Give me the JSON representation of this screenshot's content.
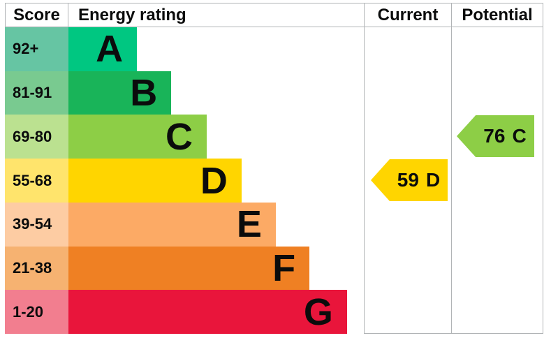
{
  "header": {
    "score": "Score",
    "energy_rating": "Energy rating",
    "current": "Current",
    "potential": "Potential"
  },
  "bands": [
    {
      "letter": "A",
      "range": "92+",
      "bar_color": "#00c781",
      "score_color": "#66c5a3",
      "width": "23.2%"
    },
    {
      "letter": "B",
      "range": "81-91",
      "bar_color": "#19b459",
      "score_color": "#79ca90",
      "width": "34.8%"
    },
    {
      "letter": "C",
      "range": "69-80",
      "bar_color": "#8dce46",
      "score_color": "#bbe190",
      "width": "46.8%"
    },
    {
      "letter": "D",
      "range": "55-68",
      "bar_color": "#ffd500",
      "score_color": "#ffe46c",
      "width": "58.6%"
    },
    {
      "letter": "E",
      "range": "39-54",
      "bar_color": "#fcaa65",
      "score_color": "#fdcca3",
      "width": "70.2%"
    },
    {
      "letter": "F",
      "range": "21-38",
      "bar_color": "#ef8023",
      "score_color": "#f6b271",
      "width": "81.6%"
    },
    {
      "letter": "G",
      "range": "1-20",
      "bar_color": "#e9153b",
      "score_color": "#f27e8f",
      "width": "94.3%"
    }
  ],
  "current": {
    "value": "59",
    "band": "D",
    "color": "#ffd500"
  },
  "potential": {
    "value": "76",
    "band": "C",
    "color": "#8dce46"
  },
  "chart_data": {
    "type": "bar",
    "title": "Energy rating",
    "columns": [
      "Score",
      "Energy rating",
      "Current",
      "Potential"
    ],
    "categories": [
      "A",
      "B",
      "C",
      "D",
      "E",
      "F",
      "G"
    ],
    "score_ranges": [
      "92+",
      "81-91",
      "69-80",
      "55-68",
      "39-54",
      "21-38",
      "1-20"
    ],
    "bar_width_pct": [
      23.2,
      34.8,
      46.8,
      58.6,
      70.2,
      81.6,
      94.3
    ],
    "colors": [
      "#00c781",
      "#19b459",
      "#8dce46",
      "#ffd500",
      "#fcaa65",
      "#ef8023",
      "#e9153b"
    ],
    "markers": [
      {
        "name": "Current",
        "value": 59,
        "band": "D",
        "color": "#ffd500"
      },
      {
        "name": "Potential",
        "value": 76,
        "band": "C",
        "color": "#8dce46"
      }
    ],
    "grid": false,
    "legend_position": "none"
  }
}
